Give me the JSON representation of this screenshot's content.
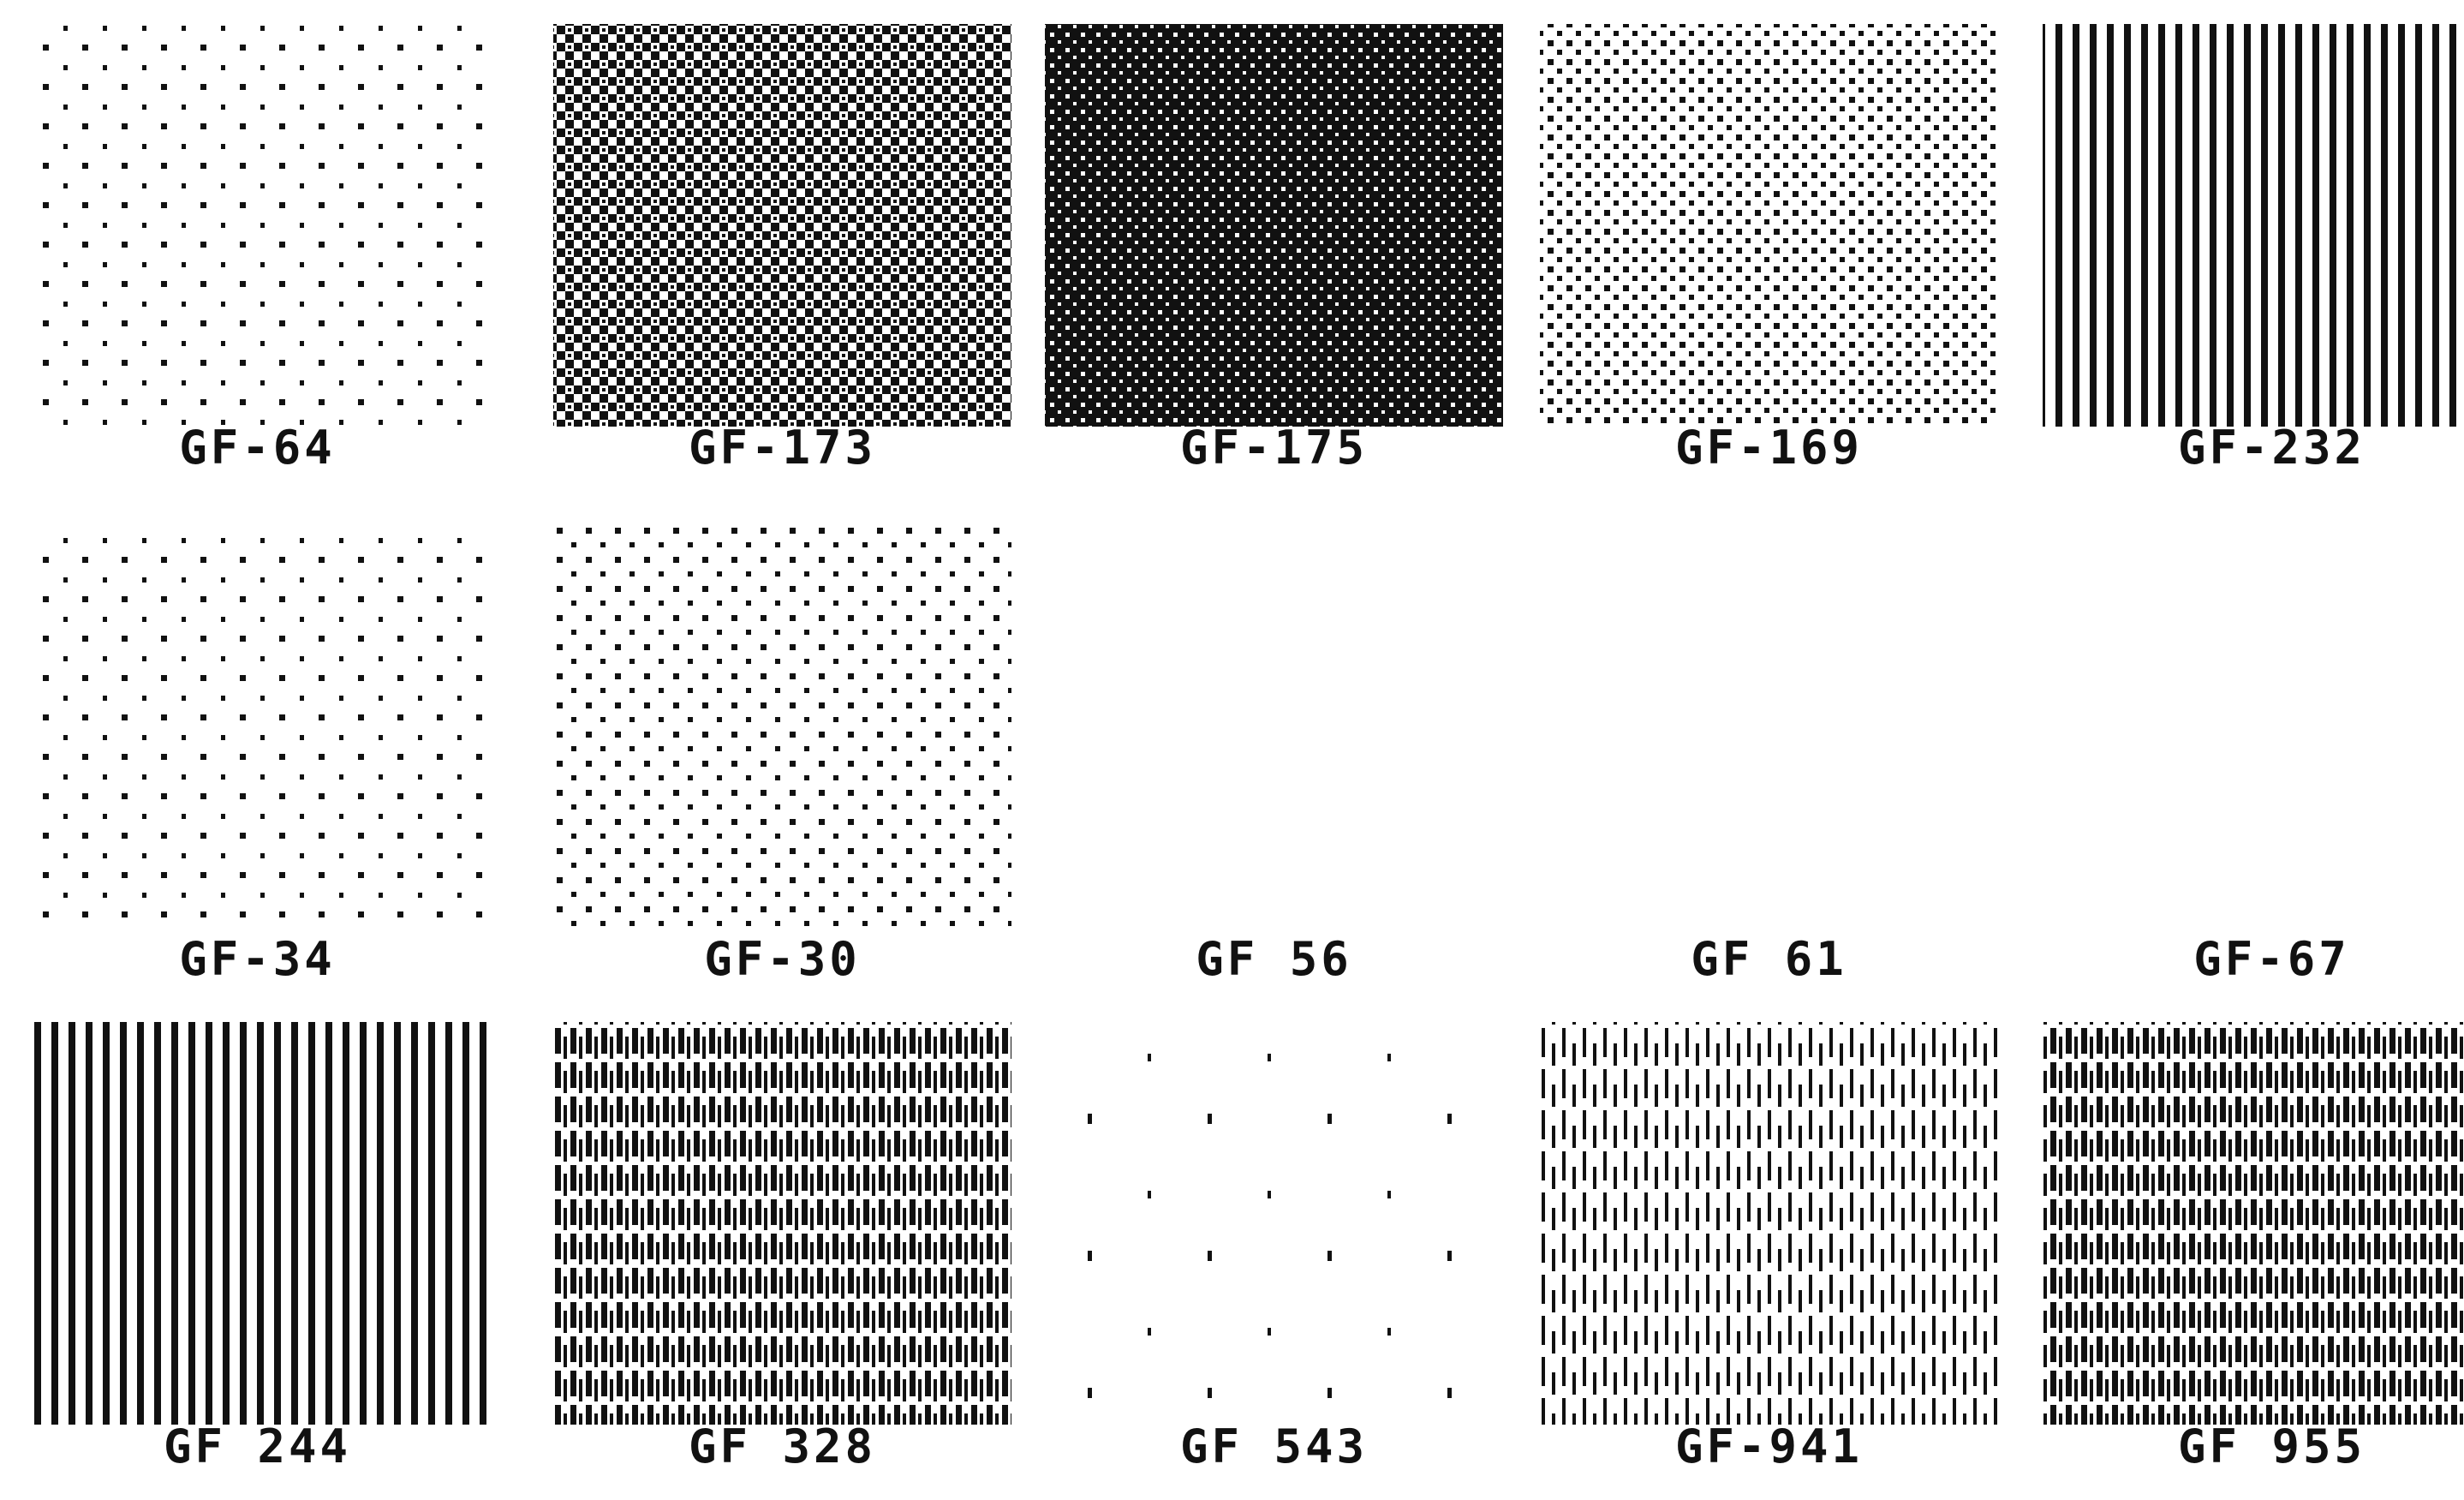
{
  "tiles": [
    {
      "label": "GF-64"
    },
    {
      "label": "GF-173"
    },
    {
      "label": "GF-175"
    },
    {
      "label": "GF-169"
    },
    {
      "label": "GF-232"
    },
    {
      "label": "GF-34"
    },
    {
      "label": "GF-30"
    },
    {
      "label": "GF 56"
    },
    {
      "label": "GF 61"
    },
    {
      "label": "GF-67"
    },
    {
      "label": "GF 244"
    },
    {
      "label": "GF 328"
    },
    {
      "label": "GF 543"
    },
    {
      "label": "GF-941"
    },
    {
      "label": "GF 955"
    }
  ]
}
